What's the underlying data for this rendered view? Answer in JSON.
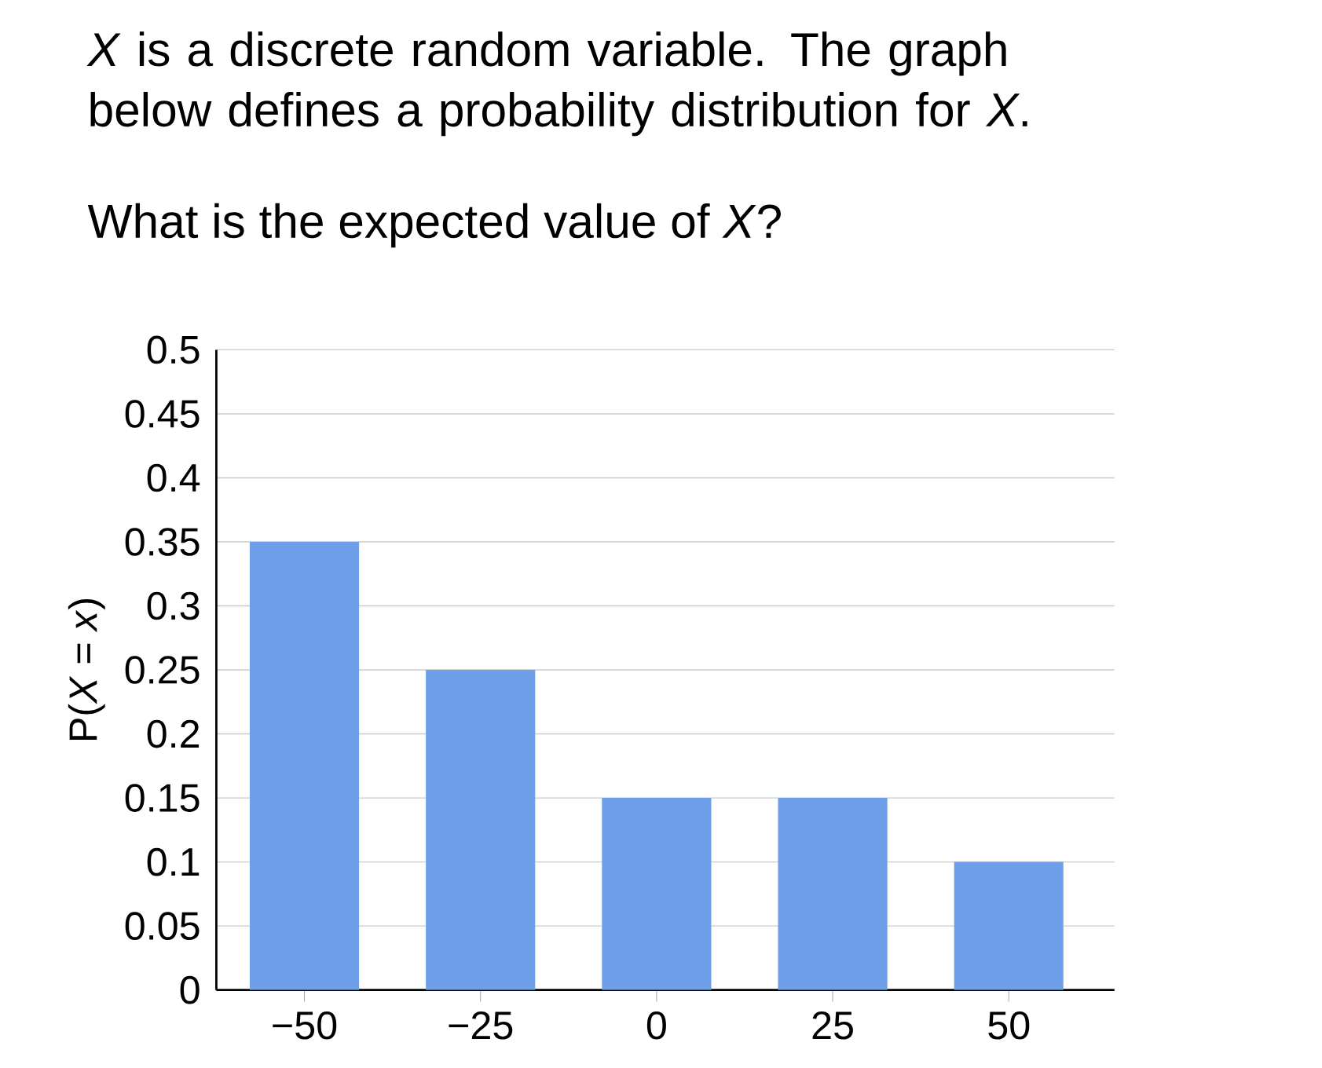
{
  "chart_data": {
    "type": "bar",
    "title": "*X* is a discrete random variable. The graph below defines a probability distribution for *X*.",
    "subtitle": "What is the expected value of *X*?",
    "ylabel": "P(*X* = *x*)",
    "categories": [
      "−50",
      "−25",
      "0",
      "25",
      "50"
    ],
    "values": [
      0.35,
      0.25,
      0.15,
      0.15,
      0.1
    ],
    "color": "#6f9fe8",
    "ylim": [
      0,
      0.5
    ],
    "yticks": [
      0,
      0.05,
      0.1,
      0.15,
      0.2,
      0.25,
      0.3,
      0.35,
      0.4,
      0.45,
      0.5
    ],
    "grid": "y"
  }
}
